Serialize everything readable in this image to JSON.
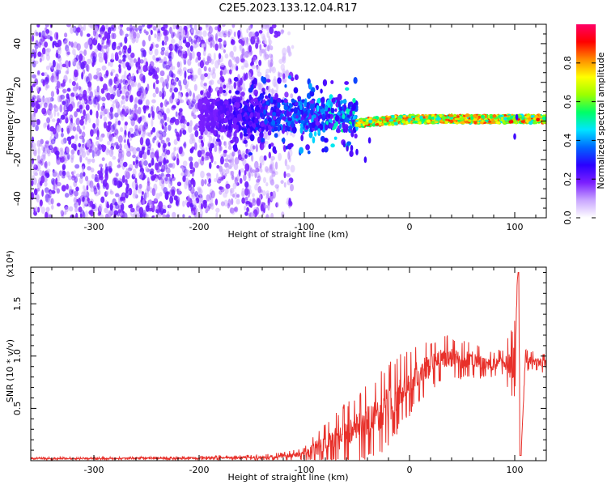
{
  "figure_title": "C2E5.2023.133.12.04.R17",
  "colors": {
    "snr_line": "#e8302a",
    "axes": "#000000",
    "background": "#ffffff"
  },
  "chart_data": [
    {
      "type": "heatmap",
      "panel": "spectrogram",
      "title": "C2E5.2023.133.12.04.R17",
      "xlabel": "Height of straight line (km)",
      "ylabel": "Frequency (Hz)",
      "xlim": [
        -360,
        130
      ],
      "ylim": [
        -50,
        50
      ],
      "x_ticks": [
        -300,
        -200,
        -100,
        0,
        100
      ],
      "y_ticks": [
        -40,
        -20,
        0,
        20,
        40
      ],
      "grid": false,
      "colorbar": {
        "label": "Normalized spectral amplitude",
        "range": [
          0.0,
          1.0
        ],
        "ticks": [
          "0.0",
          "0.2",
          "0.4",
          "0.6",
          "0.8"
        ],
        "colormap": [
          "#ffffff",
          "#c9a6ff",
          "#7b1fff",
          "#2a00ff",
          "#0066ff",
          "#00e5ff",
          "#00ff66",
          "#9cff00",
          "#ffff00",
          "#ff8a00",
          "#ff0000",
          "#ff0066"
        ]
      },
      "features": [
        {
          "x_range": [
            -360,
            -110
          ],
          "freq_range": [
            -50,
            50
          ],
          "amplitude": 0.05,
          "description_level": "broadband noise"
        },
        {
          "x_range": [
            -200,
            -50
          ],
          "freq_center": 3,
          "freq_halfwidth": 8,
          "amplitude": 0.4
        },
        {
          "x_range": [
            -50,
            130
          ],
          "freq_center": 1,
          "freq_halfwidth": 2,
          "amplitude": 0.9
        }
      ]
    },
    {
      "type": "line",
      "panel": "snr",
      "xlabel": "Height of straight line (km)",
      "ylabel": "SNR (10 * v/v)",
      "y_multiplier": "(x10⁴)",
      "xlim": [
        -360,
        130
      ],
      "ylim": [
        0,
        18500
      ],
      "x_ticks": [
        -300,
        -200,
        -100,
        0,
        100
      ],
      "y_ticks": [
        "0.5",
        "1.0",
        "1.5"
      ],
      "y_tick_values": [
        5000,
        10000,
        15000
      ],
      "grid": false,
      "series": [
        {
          "color": "#e8302a",
          "x": [
            -360,
            -300,
            -200,
            -150,
            -120,
            -100,
            -90,
            -80,
            -60,
            -40,
            -20,
            -10,
            0,
            10,
            20,
            30,
            40,
            50,
            60,
            70,
            80,
            90,
            95,
            100,
            103,
            106,
            110,
            120,
            130
          ],
          "y": [
            200,
            200,
            250,
            300,
            400,
            600,
            1100,
            1600,
            2500,
            3800,
            5200,
            6500,
            7500,
            8500,
            9000,
            9800,
            9800,
            9600,
            9700,
            9400,
            9200,
            9400,
            9000,
            9500,
            18000,
            400,
            9600,
            9500,
            9200
          ],
          "noise": [
            100,
            100,
            150,
            200,
            300,
            500,
            1300,
            1600,
            2400,
            2800,
            3200,
            2800,
            2500,
            2200,
            1800,
            1800,
            1600,
            1400,
            1400,
            1200,
            1000,
            1000,
            2500,
            3000,
            0,
            0,
            800,
            700,
            700
          ]
        }
      ]
    }
  ]
}
